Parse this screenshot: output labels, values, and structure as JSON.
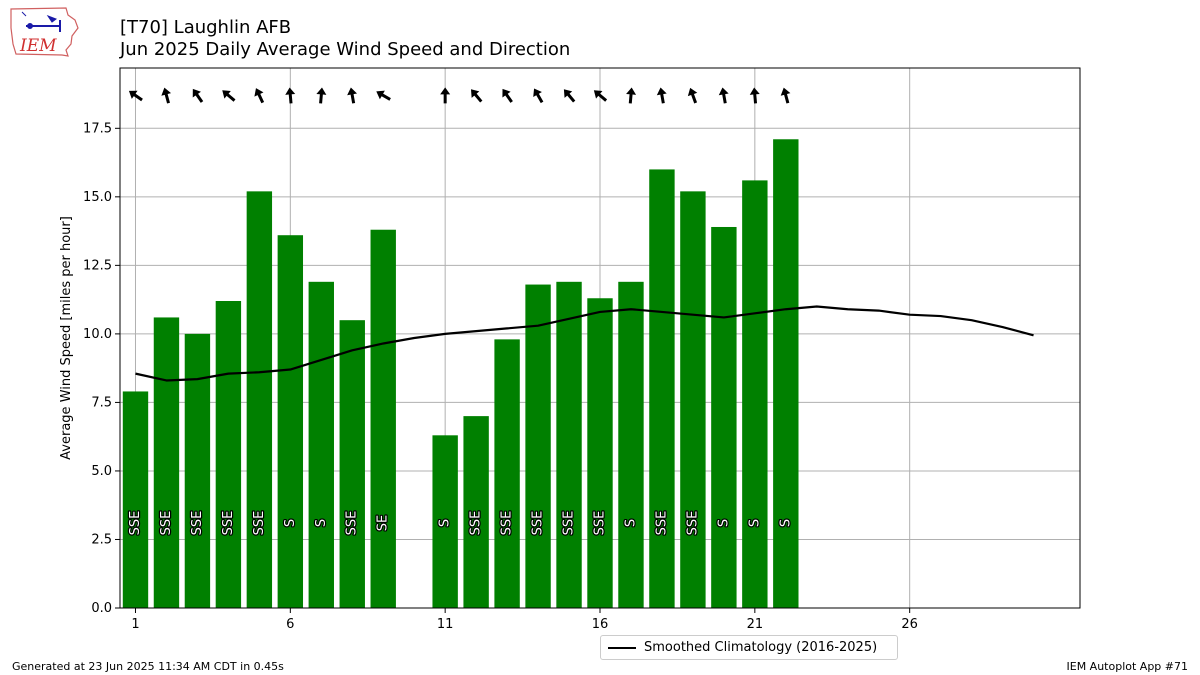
{
  "header": {
    "title_line1": "[T70] Laughlin AFB",
    "title_line2": "Jun 2025 Daily Average Wind Speed and Direction",
    "logo_text": "IEM"
  },
  "footer": {
    "left": "Generated at 23 Jun 2025 11:34 AM CDT in 0.45s",
    "right": "IEM Autoplot App #71"
  },
  "legend": {
    "label": "Smoothed Climatology (2016-2025)"
  },
  "colors": {
    "bar": "#008000",
    "climatology_line": "#000000",
    "grid": "#b0b0b0"
  },
  "chart_data": {
    "type": "bar",
    "title": "[T70] Laughlin AFB",
    "subtitle": "Jun 2025 Daily Average Wind Speed and Direction",
    "xlabel": "",
    "ylabel": "Average Wind Speed [miles per hour]",
    "xlim": [
      0.5,
      31.5
    ],
    "ylim": [
      0,
      19.7
    ],
    "xticks": [
      1,
      6,
      11,
      16,
      21,
      26
    ],
    "yticks": [
      0.0,
      2.5,
      5.0,
      7.5,
      10.0,
      12.5,
      15.0,
      17.5
    ],
    "grid": true,
    "legend_position": "below",
    "series": [
      {
        "type": "bar",
        "x": [
          1,
          2,
          3,
          4,
          5,
          6,
          7,
          8,
          9,
          11,
          12,
          13,
          14,
          15,
          16,
          17,
          18,
          19,
          20,
          21,
          22
        ],
        "values": [
          7.9,
          10.6,
          10.0,
          11.2,
          15.2,
          13.6,
          11.9,
          10.5,
          13.8,
          6.3,
          7.0,
          9.8,
          11.8,
          11.9,
          11.3,
          11.9,
          16.0,
          15.2,
          13.9,
          15.6,
          17.1
        ],
        "direction_labels": [
          "SSE",
          "SSE",
          "SSE",
          "SSE",
          "SSE",
          "S",
          "S",
          "SSE",
          "SE",
          "S",
          "SSE",
          "SSE",
          "SSE",
          "SSE",
          "SSE",
          "S",
          "SSE",
          "SSE",
          "S",
          "S",
          "S"
        ],
        "arrow_directions_deg": [
          305,
          345,
          325,
          310,
          335,
          355,
          5,
          350,
          300,
          0,
          320,
          325,
          330,
          320,
          310,
          5,
          350,
          340,
          350,
          355,
          345
        ]
      },
      {
        "name": "Smoothed Climatology (2016-2025)",
        "type": "line",
        "x": [
          1,
          2,
          3,
          4,
          5,
          6,
          7,
          8,
          9,
          10,
          11,
          12,
          13,
          14,
          15,
          16,
          17,
          18,
          19,
          20,
          21,
          22,
          23,
          24,
          25,
          26,
          27,
          28,
          29,
          30
        ],
        "values": [
          8.55,
          8.3,
          8.35,
          8.55,
          8.6,
          8.7,
          9.05,
          9.4,
          9.65,
          9.85,
          10.0,
          10.1,
          10.2,
          10.3,
          10.55,
          10.8,
          10.9,
          10.8,
          10.7,
          10.6,
          10.75,
          10.9,
          11.0,
          10.9,
          10.85,
          10.7,
          10.65,
          10.5,
          10.25,
          9.95
        ]
      }
    ]
  }
}
